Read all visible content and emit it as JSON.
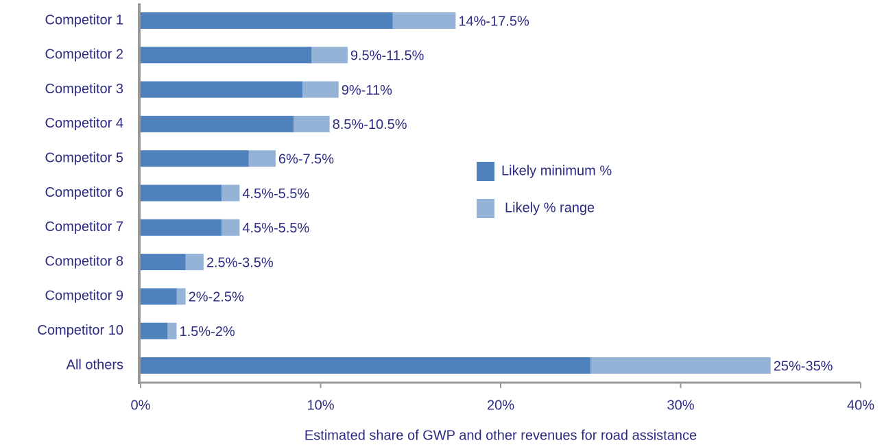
{
  "chart_data": {
    "type": "stacked-barh",
    "categories": [
      "Competitor 1",
      "Competitor 2",
      "Competitor 3",
      "Competitor 4",
      "Competitor 5",
      "Competitor 6",
      "Competitor 7",
      "Competitor 8",
      "Competitor 9",
      "Competitor 10",
      "All others"
    ],
    "series": [
      {
        "name": "Likely minimum %",
        "color": "#4f81bd",
        "values": [
          14,
          9.5,
          9,
          8.5,
          6,
          4.5,
          4.5,
          2.5,
          2,
          1.5,
          25
        ]
      },
      {
        "name": "Likely % range",
        "color": "#95b3d7",
        "values": [
          3.5,
          2,
          2,
          2,
          1.5,
          1,
          1,
          1,
          0.5,
          0.5,
          10
        ]
      }
    ],
    "range_labels": [
      "14%-17.5%",
      "9.5%-11.5%",
      "9%-11%",
      "8.5%-10.5%",
      "6%-7.5%",
      "4.5%-5.5%",
      "4.5%-5.5%",
      "2.5%-3.5%",
      "2%-2.5%",
      "1.5%-2%",
      "25%-35%"
    ],
    "xlabel": "Estimated share of GWP and other revenues for road assistance",
    "xlim": [
      0,
      40
    ],
    "xticks": [
      {
        "value": 0,
        "label": "0%"
      },
      {
        "value": 10,
        "label": "10%"
      },
      {
        "value": 20,
        "label": "20%"
      },
      {
        "value": 30,
        "label": "30%"
      },
      {
        "value": 40,
        "label": "40%"
      }
    ]
  }
}
